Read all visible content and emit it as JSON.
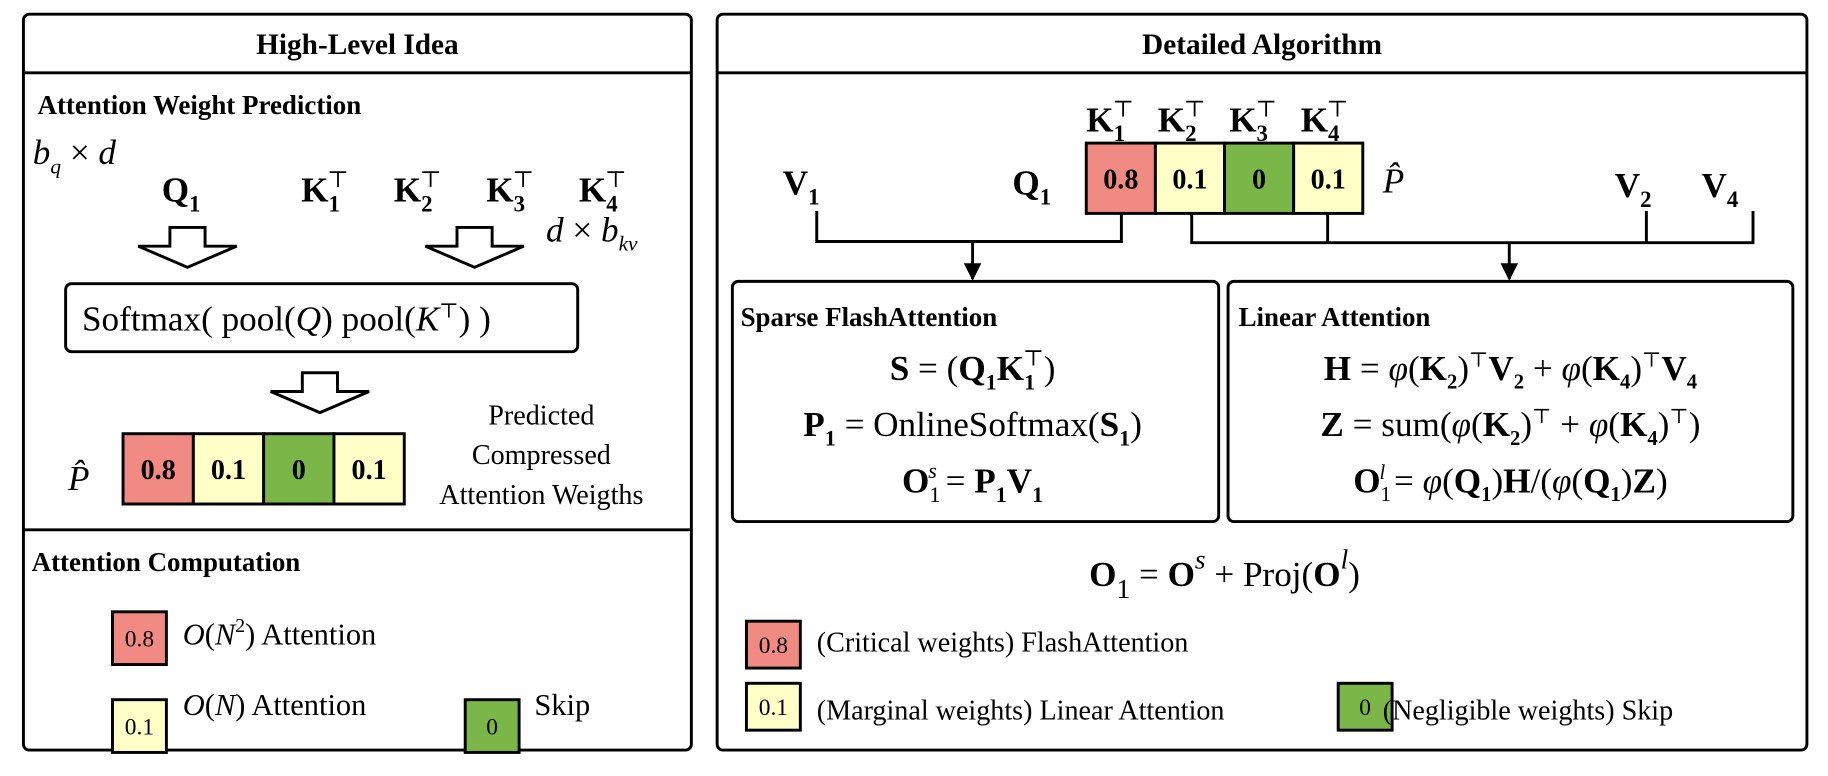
{
  "colors": {
    "critical": "#f08a82",
    "marginal": "#ffffc8",
    "negligible": "#7ab648",
    "sparse_title": "#b02a2a",
    "linear_title": "#b8952e"
  },
  "left_panel": {
    "title": "High-Level Idea",
    "prediction": {
      "heading": "Attention Weight Prediction",
      "q_dim": [
        [
          "b",
          "i"
        ],
        [
          "q",
          "isub"
        ],
        [
          " × ",
          "n"
        ],
        [
          "d",
          "i"
        ]
      ],
      "q_label": [
        [
          "Q",
          "b"
        ],
        [
          "1",
          "bsub"
        ]
      ],
      "k_labels": [
        [
          [
            "K",
            "b"
          ],
          [
            "1",
            "bsub"
          ],
          [
            "⊤",
            "supstack"
          ]
        ],
        [
          [
            "K",
            "b"
          ],
          [
            "2",
            "bsub"
          ],
          [
            "⊤",
            "supstack"
          ]
        ],
        [
          [
            "K",
            "b"
          ],
          [
            "3",
            "bsub"
          ],
          [
            "⊤",
            "supstack"
          ]
        ],
        [
          [
            "K",
            "b"
          ],
          [
            "4",
            "bsub"
          ],
          [
            "⊤",
            "supstack"
          ]
        ]
      ],
      "k_dim": [
        [
          "d",
          "i"
        ],
        [
          " × ",
          "n"
        ],
        [
          "b",
          "i"
        ],
        [
          "kv",
          "isub"
        ]
      ],
      "softmax": [
        [
          "Softmax( pool(",
          "n"
        ],
        [
          "Q",
          "i"
        ],
        [
          ") pool(",
          "n"
        ],
        [
          "K",
          "i"
        ],
        [
          "⊤",
          "sup"
        ],
        [
          ") )",
          "n"
        ]
      ],
      "p_hat": "P̂",
      "cells": [
        {
          "value": "0.8",
          "level": "critical"
        },
        {
          "value": "0.1",
          "level": "marginal"
        },
        {
          "value": "0",
          "level": "negligible"
        },
        {
          "value": "0.1",
          "level": "marginal"
        }
      ],
      "caption": [
        "Predicted",
        "Compressed",
        "Attention Weigths"
      ]
    },
    "computation": {
      "heading": "Attention Computation",
      "legend": [
        {
          "swatch": "0.8",
          "level": "critical",
          "label": [
            [
              "O",
              "i"
            ],
            [
              "(",
              "n"
            ],
            [
              "N",
              "i"
            ],
            [
              "2",
              "sup"
            ],
            [
              ") Attention",
              "n"
            ]
          ]
        },
        {
          "swatch": "0.1",
          "level": "marginal",
          "label": [
            [
              "O",
              "i"
            ],
            [
              "(",
              "n"
            ],
            [
              "N",
              "i"
            ],
            [
              ") Attention",
              "n"
            ]
          ]
        },
        {
          "swatch": "0",
          "level": "negligible",
          "label": [
            [
              "Skip",
              "n"
            ]
          ]
        }
      ]
    }
  },
  "right_panel": {
    "title": "Detailed Algorithm",
    "k_labels": [
      [
        [
          "K",
          "b"
        ],
        [
          "1",
          "bsub"
        ],
        [
          "⊤",
          "supstack"
        ]
      ],
      [
        [
          "K",
          "b"
        ],
        [
          "2",
          "bsub"
        ],
        [
          "⊤",
          "supstack"
        ]
      ],
      [
        [
          "K",
          "b"
        ],
        [
          "3",
          "bsub"
        ],
        [
          "⊤",
          "supstack"
        ]
      ],
      [
        [
          "K",
          "b"
        ],
        [
          "4",
          "bsub"
        ],
        [
          "⊤",
          "supstack"
        ]
      ]
    ],
    "q_label": [
      [
        "Q",
        "b"
      ],
      [
        "1",
        "bsub"
      ]
    ],
    "v1_label": [
      [
        "V",
        "b"
      ],
      [
        "1",
        "bsub"
      ]
    ],
    "v2_label": [
      [
        "V",
        "b"
      ],
      [
        "2",
        "bsub"
      ]
    ],
    "v4_label": [
      [
        "V",
        "b"
      ],
      [
        "4",
        "bsub"
      ]
    ],
    "p_hat": "P̂",
    "cells": [
      {
        "value": "0.8",
        "level": "critical"
      },
      {
        "value": "0.1",
        "level": "marginal"
      },
      {
        "value": "0",
        "level": "negligible"
      },
      {
        "value": "0.1",
        "level": "marginal"
      }
    ],
    "sparse": {
      "title": "Sparse FlashAttention",
      "equations": [
        [
          [
            "S",
            "b"
          ],
          [
            " = (",
            "n"
          ],
          [
            "Q",
            "b"
          ],
          [
            "1",
            "bsub"
          ],
          [
            "K",
            "b"
          ],
          [
            "1",
            "bsub"
          ],
          [
            "⊤",
            "supstack"
          ],
          [
            ")",
            "n"
          ]
        ],
        [
          [
            "P",
            "b"
          ],
          [
            "1",
            "bsub"
          ],
          [
            " = OnlineSoftmax(",
            "n"
          ],
          [
            "S",
            "b"
          ],
          [
            "1",
            "bsub"
          ],
          [
            ")",
            "n"
          ]
        ],
        [
          [
            "O",
            "b"
          ],
          [
            "1",
            "sub"
          ],
          [
            "s",
            "isupstack"
          ],
          [
            " = ",
            "n"
          ],
          [
            "P",
            "b"
          ],
          [
            "1",
            "bsub"
          ],
          [
            "V",
            "b"
          ],
          [
            "1",
            "bsub"
          ]
        ]
      ]
    },
    "linear": {
      "title": "Linear Attention",
      "equations": [
        [
          [
            "H",
            "b"
          ],
          [
            " = ",
            "n"
          ],
          [
            "φ",
            "i"
          ],
          [
            "(",
            "n"
          ],
          [
            "K",
            "b"
          ],
          [
            "2",
            "bsub"
          ],
          [
            ")",
            "n"
          ],
          [
            "⊤",
            "sup"
          ],
          [
            "V",
            "b"
          ],
          [
            "2",
            "bsub"
          ],
          [
            " + ",
            "n"
          ],
          [
            "φ",
            "i"
          ],
          [
            "(",
            "n"
          ],
          [
            "K",
            "b"
          ],
          [
            "4",
            "bsub"
          ],
          [
            ")",
            "n"
          ],
          [
            "⊤",
            "sup"
          ],
          [
            "V",
            "b"
          ],
          [
            "4",
            "bsub"
          ]
        ],
        [
          [
            "Z",
            "b"
          ],
          [
            " = sum(",
            "n"
          ],
          [
            "φ",
            "i"
          ],
          [
            "(",
            "n"
          ],
          [
            "K",
            "b"
          ],
          [
            "2",
            "bsub"
          ],
          [
            ")",
            "n"
          ],
          [
            "⊤",
            "sup"
          ],
          [
            " + ",
            "n"
          ],
          [
            "φ",
            "i"
          ],
          [
            "(",
            "n"
          ],
          [
            "K",
            "b"
          ],
          [
            "4",
            "bsub"
          ],
          [
            ")",
            "n"
          ],
          [
            "⊤",
            "sup"
          ],
          [
            ")",
            "n"
          ]
        ],
        [
          [
            "O",
            "b"
          ],
          [
            "1",
            "sub"
          ],
          [
            "l",
            "isupstack"
          ],
          [
            " = ",
            "n"
          ],
          [
            "φ",
            "i"
          ],
          [
            "(",
            "n"
          ],
          [
            "Q",
            "b"
          ],
          [
            "1",
            "bsub"
          ],
          [
            ")",
            "n"
          ],
          [
            "H",
            "b"
          ],
          [
            "/(",
            "n"
          ],
          [
            "φ",
            "i"
          ],
          [
            "(",
            "n"
          ],
          [
            "Q",
            "b"
          ],
          [
            "1",
            "bsub"
          ],
          [
            ")",
            "n"
          ],
          [
            "Z",
            "b"
          ],
          [
            ")",
            "n"
          ]
        ]
      ]
    },
    "output_equation": [
      [
        "O",
        "b"
      ],
      [
        "1",
        "sub"
      ],
      [
        " = ",
        "n"
      ],
      [
        "O",
        "b"
      ],
      [
        "s",
        "isup"
      ],
      [
        " + Proj(",
        "n"
      ],
      [
        "O",
        "b"
      ],
      [
        "l",
        "isup"
      ],
      [
        ")",
        "n"
      ]
    ],
    "legend": [
      {
        "swatch": "0.8",
        "level": "critical",
        "label": "(Critical weights) FlashAttention"
      },
      {
        "swatch": "0.1",
        "level": "marginal",
        "label": "(Marginal weights) Linear Attention"
      },
      {
        "swatch": "0",
        "level": "negligible",
        "label": "(Negligible weights) Skip"
      }
    ]
  }
}
